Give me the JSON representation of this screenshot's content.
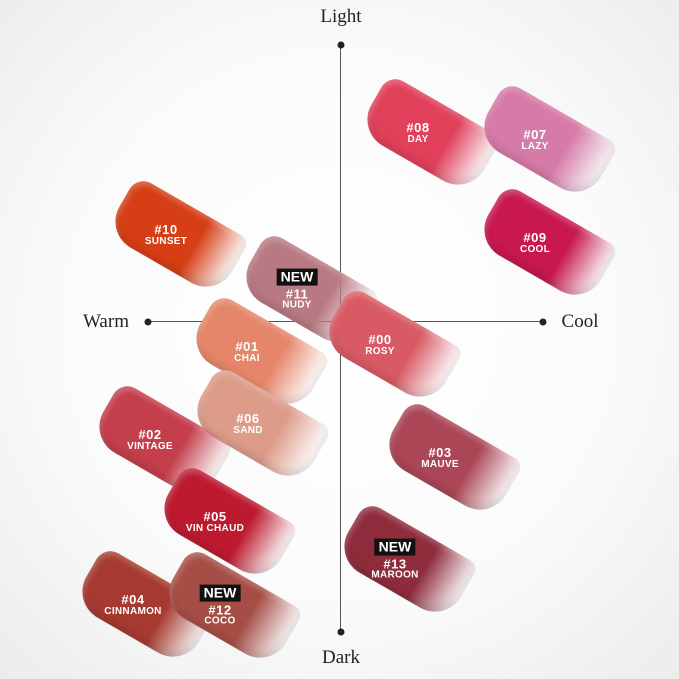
{
  "axes": {
    "top": "Light",
    "bottom": "Dark",
    "left": "Warm",
    "right": "Cool"
  },
  "new_badge": "NEW",
  "shades": [
    {
      "number": "#08",
      "name": "DAY",
      "color": "#e0405a",
      "new": false
    },
    {
      "number": "#07",
      "name": "LAZY",
      "color": "#d67aa8",
      "new": false
    },
    {
      "number": "#09",
      "name": "COOL",
      "color": "#c8184e",
      "new": false
    },
    {
      "number": "#10",
      "name": "SUNSET",
      "color": "#d63e16",
      "new": false
    },
    {
      "number": "#11",
      "name": "NUDY",
      "color": "#b87a82",
      "new": true
    },
    {
      "number": "#01",
      "name": "CHAI",
      "color": "#e5866a",
      "new": false
    },
    {
      "number": "#00",
      "name": "ROSY",
      "color": "#d85a64",
      "new": false
    },
    {
      "number": "#06",
      "name": "SAND",
      "color": "#dd9c8a",
      "new": false
    },
    {
      "number": "#02",
      "name": "VINTAGE",
      "color": "#c43e4c",
      "new": false
    },
    {
      "number": "#03",
      "name": "MAUVE",
      "color": "#ab4656",
      "new": false
    },
    {
      "number": "#05",
      "name": "VIN CHAUD",
      "color": "#bd1a30",
      "new": false
    },
    {
      "number": "#13",
      "name": "MAROON",
      "color": "#8e2c3c",
      "new": true
    },
    {
      "number": "#04",
      "name": "CINNAMON",
      "color": "#a63a30",
      "new": false
    },
    {
      "number": "#12",
      "name": "COCO",
      "color": "#a64e46",
      "new": true
    }
  ]
}
